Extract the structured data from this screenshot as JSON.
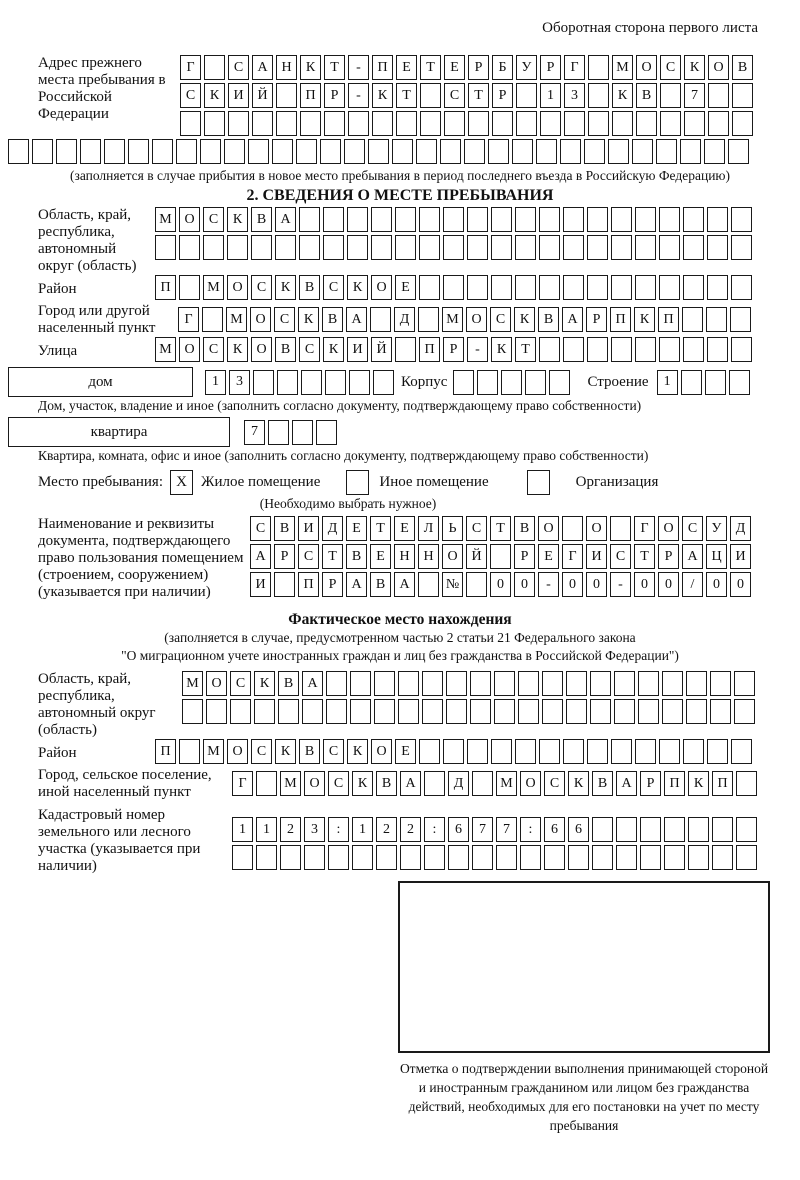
{
  "page": {
    "header_note": "Оборотная сторона первого листа"
  },
  "prev_address": {
    "label": "Адрес прежнего места пребывания в Российской Федерации",
    "row1": "Г САНКТ-ПЕТЕРБУРГ МОСКОВ",
    "row2": "СКИЙ ПР-КТ СТР 13 КВ 7",
    "row3": "",
    "row4": "",
    "note": "(заполняется в случае прибытия в новое место пребывания в период последнего въезда в Российскую Федерацию)"
  },
  "section2": {
    "title": "2. СВЕДЕНИЯ О МЕСТЕ ПРЕБЫВАНИЯ",
    "oblast": {
      "label": "Область, край, республика, автономный округ (область)",
      "row1": "МОСКВА",
      "row2": ""
    },
    "rayon": {
      "label": "Район",
      "value": "П МОСКВСКОЕ"
    },
    "gorod": {
      "label": "Город или другой населенный пункт",
      "value": "Г МОСКВА Д МОСКВАРПКП"
    },
    "ulitsa": {
      "label": "Улица",
      "value": "МОСКОВСКИЙ ПР-КТ"
    },
    "dom": {
      "word": "дом",
      "value": "13",
      "korpus_label": "Корпус",
      "korpus_value": "",
      "stroenie_label": "Строение",
      "stroenie_value": "1",
      "note": "Дом, участок, владение и иное (заполнить согласно документу, подтверждающему право собственности)"
    },
    "kvartira": {
      "word": "квартира",
      "value": "7",
      "note": "Квартира, комната, офис и иное (заполнить согласно документу, подтверждающему право собственности)"
    },
    "mesto": {
      "label": "Место пребывания:",
      "zhiloe_mark": "X",
      "zhiloe_label": "Жилое помещение",
      "inoe_mark": "",
      "inoe_label": "Иное помещение",
      "org_mark": "",
      "org_label": "Организация",
      "note": "(Необходимо выбрать нужное)"
    },
    "doc": {
      "label": "Наименование и реквизиты документа, подтверждающего право пользования помещением (строением, сооружением) (указывается при наличии)",
      "row1": "СВИДЕТЕЛЬСТВО О ГОСУД",
      "row2": "АРСТВЕННОЙ РЕГИСТРАЦИ",
      "row3": "И ПРАВА № 00-00-00/000"
    }
  },
  "fact": {
    "title": "Фактическое место нахождения",
    "note1": "(заполняется в случае, предусмотренном частью 2 статьи 21 Федерального закона",
    "note2": "\"О миграционном учете иностранных граждан и лиц без гражданства в Российской Федерации\")",
    "oblast": {
      "label": "Область, край, республика, автономный округ (область)",
      "row1": "МОСКВА",
      "row2": ""
    },
    "rayon": {
      "label": "Район",
      "value": "П МОСКВСКОЕ"
    },
    "gorod": {
      "label": "Город, сельское поселение, иной населенный пункт",
      "value": "Г МОСКВА Д МОСКВАРПКП"
    },
    "kadastr": {
      "label": "Кадастровый номер земельного или лесного участка (указывается при наличии)",
      "row1": "1123:122:677:66",
      "row2": ""
    },
    "stamp_caption": "Отметка о подтверждении выполнения принимающей стороной и иностранным гражданином или лицом без гражданства действий, необходимых для его постановки на учет по месту пребывания"
  }
}
